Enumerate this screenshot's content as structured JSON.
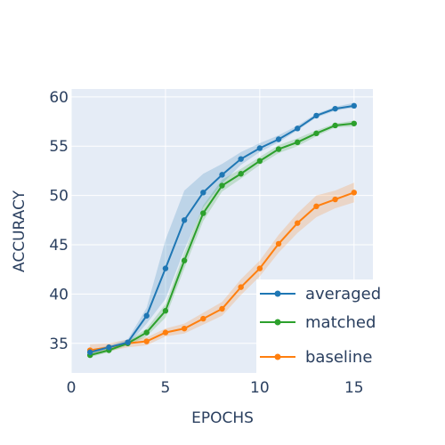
{
  "chart_data": {
    "type": "line",
    "title": "",
    "xlabel": "EPOCHS",
    "ylabel": "ACCURACY",
    "xlim": [
      0,
      16
    ],
    "ylim": [
      32,
      60.8
    ],
    "x_ticks": [
      0,
      5,
      10,
      15
    ],
    "y_ticks": [
      35,
      40,
      45,
      50,
      55,
      60
    ],
    "grid": true,
    "legend_position": "bottom-right",
    "x": [
      1,
      2,
      3,
      4,
      5,
      6,
      7,
      8,
      9,
      10,
      11,
      12,
      13,
      14,
      15
    ],
    "series": [
      {
        "name": "averaged",
        "color": "#1f77b4",
        "band_color": "rgba(31,119,180,0.2)",
        "values": [
          34.1,
          34.6,
          35.1,
          37.8,
          42.6,
          47.5,
          50.3,
          52.1,
          53.7,
          54.8,
          55.7,
          56.8,
          58.1,
          58.8,
          59.1
        ],
        "lower": [
          33.9,
          34.4,
          34.8,
          37.0,
          39.5,
          44.5,
          48.8,
          51.2,
          53.1,
          54.4,
          55.4,
          56.6,
          57.9,
          58.6,
          58.9
        ],
        "upper": [
          34.3,
          34.8,
          35.4,
          38.6,
          45.5,
          50.5,
          52.2,
          53.2,
          54.4,
          55.3,
          56.1,
          57.1,
          58.3,
          59.0,
          59.4
        ]
      },
      {
        "name": "matched",
        "color": "#2ca02c",
        "band_color": "rgba(44,160,44,0.2)",
        "values": [
          33.8,
          34.3,
          35.0,
          36.1,
          38.3,
          43.4,
          48.2,
          51.0,
          52.2,
          53.5,
          54.7,
          55.4,
          56.3,
          57.1,
          57.3
        ],
        "lower": [
          33.6,
          34.1,
          34.8,
          35.7,
          37.6,
          42.6,
          47.4,
          50.4,
          51.7,
          53.1,
          54.3,
          55.0,
          56.0,
          56.9,
          57.0
        ],
        "upper": [
          34.0,
          34.5,
          35.2,
          36.5,
          39.0,
          44.2,
          49.0,
          51.6,
          52.7,
          53.9,
          55.1,
          55.8,
          56.6,
          57.3,
          57.6
        ]
      },
      {
        "name": "baseline",
        "color": "#ff7f0e",
        "band_color": "rgba(255,127,14,0.2)",
        "values": [
          34.3,
          34.6,
          35.0,
          35.2,
          36.1,
          36.5,
          37.5,
          38.5,
          40.7,
          42.6,
          45.1,
          47.2,
          48.9,
          49.6,
          50.3
        ],
        "lower": [
          33.7,
          34.2,
          34.6,
          34.8,
          35.7,
          36.0,
          36.9,
          37.8,
          39.9,
          41.8,
          44.2,
          46.2,
          47.8,
          48.7,
          49.3
        ],
        "upper": [
          34.9,
          35.0,
          35.4,
          35.6,
          36.5,
          37.0,
          38.1,
          39.2,
          41.5,
          43.4,
          46.0,
          48.2,
          50.0,
          50.5,
          51.3
        ]
      }
    ]
  }
}
